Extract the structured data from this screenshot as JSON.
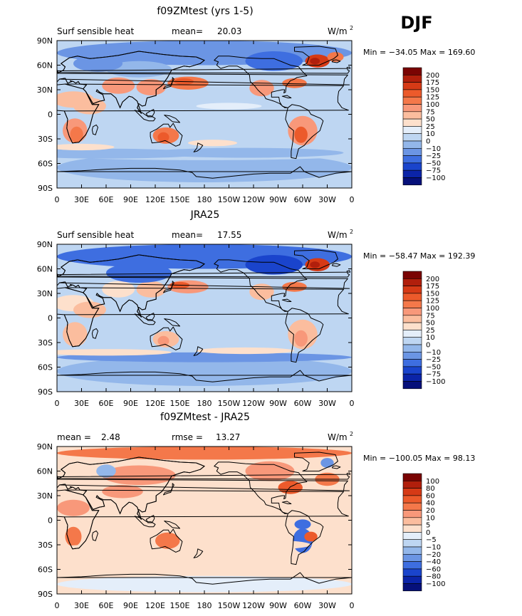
{
  "season": "DJF",
  "chart_data": [
    {
      "type": "heatmap",
      "title": "f09ZMtest (yrs 1-5)",
      "left_label": "Surf sensible heat",
      "mean_label": "mean=",
      "mean_value": "20.03",
      "units_base": "W/m",
      "units_exp": "2",
      "minmax": "Min = −34.05 Max = 169.60",
      "x_ticks": [
        "0",
        "30E",
        "60E",
        "90E",
        "120E",
        "150E",
        "180",
        "150W",
        "120W",
        "90W",
        "60W",
        "30W",
        "0"
      ],
      "y_ticks": [
        "90N",
        "60N",
        "30N",
        "0",
        "30S",
        "60S",
        "90S"
      ],
      "colorbar": {
        "labels": [
          "200",
          "175",
          "150",
          "125",
          "100",
          "75",
          "50",
          "25",
          "10",
          "0",
          "−10",
          "−25",
          "−50",
          "−75",
          "−100"
        ],
        "colors": [
          "#7a0403",
          "#b11f0c",
          "#d63a16",
          "#ec5a2b",
          "#f4784a",
          "#f8987a",
          "#fbbd9e",
          "#fde0cc",
          "#e4eefa",
          "#bed6f2",
          "#93b7ea",
          "#6b95e4",
          "#3e6ee0",
          "#1a44cc",
          "#0b24a8",
          "#06107a"
        ]
      }
    },
    {
      "type": "heatmap",
      "title": "JRA25",
      "left_label": "Surf sensible heat",
      "mean_label": "mean=",
      "mean_value": "17.55",
      "units_base": "W/m",
      "units_exp": "2",
      "minmax": "Min = −58.47 Max = 192.39",
      "x_ticks": [
        "0",
        "30E",
        "60E",
        "90E",
        "120E",
        "150E",
        "180",
        "150W",
        "120W",
        "90W",
        "60W",
        "30W",
        "0"
      ],
      "y_ticks": [
        "90N",
        "60N",
        "30N",
        "0",
        "30S",
        "60S",
        "90S"
      ],
      "colorbar": {
        "labels": [
          "200",
          "175",
          "150",
          "125",
          "100",
          "75",
          "50",
          "25",
          "10",
          "0",
          "−10",
          "−25",
          "−50",
          "−75",
          "−100"
        ],
        "colors": [
          "#7a0403",
          "#b11f0c",
          "#d63a16",
          "#ec5a2b",
          "#f4784a",
          "#f8987a",
          "#fbbd9e",
          "#fde0cc",
          "#e4eefa",
          "#bed6f2",
          "#93b7ea",
          "#6b95e4",
          "#3e6ee0",
          "#1a44cc",
          "#0b24a8",
          "#06107a"
        ]
      }
    },
    {
      "type": "heatmap",
      "title": "f09ZMtest - JRA25",
      "left_label": "",
      "mean_label": "mean =",
      "mean_value": "2.48",
      "rmse_label": "rmse =",
      "rmse_value": "13.27",
      "units_base": "W/m",
      "units_exp": "2",
      "minmax": "Min = −100.05 Max =  98.13",
      "x_ticks": [
        "0",
        "30E",
        "60E",
        "90E",
        "120E",
        "150E",
        "180",
        "150W",
        "120W",
        "90W",
        "60W",
        "30W",
        "0"
      ],
      "y_ticks": [
        "90N",
        "60N",
        "30N",
        "0",
        "30S",
        "60S",
        "90S"
      ],
      "colorbar": {
        "labels": [
          "100",
          "80",
          "60",
          "40",
          "20",
          "10",
          "5",
          "0",
          "−5",
          "−10",
          "−20",
          "−40",
          "−60",
          "−80",
          "−100"
        ],
        "colors": [
          "#7a0403",
          "#b11f0c",
          "#d63a16",
          "#ec5a2b",
          "#f4784a",
          "#f8987a",
          "#fbbd9e",
          "#fde0cc",
          "#e4eefa",
          "#bed6f2",
          "#93b7ea",
          "#6b95e4",
          "#3e6ee0",
          "#1a44cc",
          "#0b24a8",
          "#06107a"
        ]
      }
    }
  ]
}
